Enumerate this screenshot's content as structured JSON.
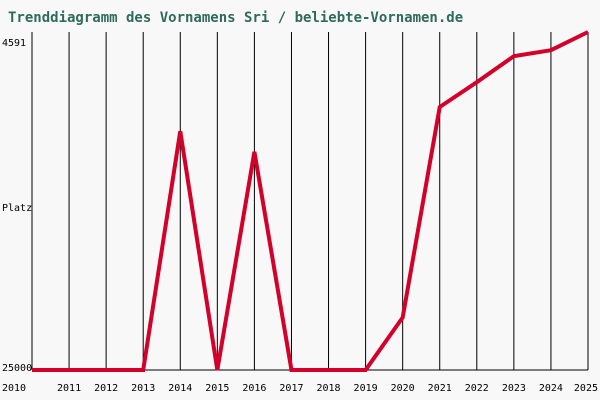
{
  "chart_data": {
    "type": "line",
    "title": "Trenddiagramm des Vornamens Sri / beliebte-Vornamen.de",
    "ylabel": "Platz",
    "y_top_label": "4591",
    "y_bottom_label": "25000",
    "ylim": [
      25000,
      4591
    ],
    "x": [
      "2010",
      "2011",
      "2012",
      "2013",
      "2014",
      "2015",
      "2016",
      "2017",
      "2018",
      "2019",
      "2020",
      "2021",
      "2022",
      "2023",
      "2024",
      "2025"
    ],
    "values": [
      25000,
      25000,
      25000,
      25000,
      10580,
      25000,
      11830,
      25000,
      25000,
      25000,
      21830,
      9120,
      7620,
      6050,
      5690,
      4591
    ],
    "colors": {
      "series": "#d2002a",
      "title": "#2e6b5a",
      "background": "#f8f8f8"
    },
    "grid": true
  }
}
